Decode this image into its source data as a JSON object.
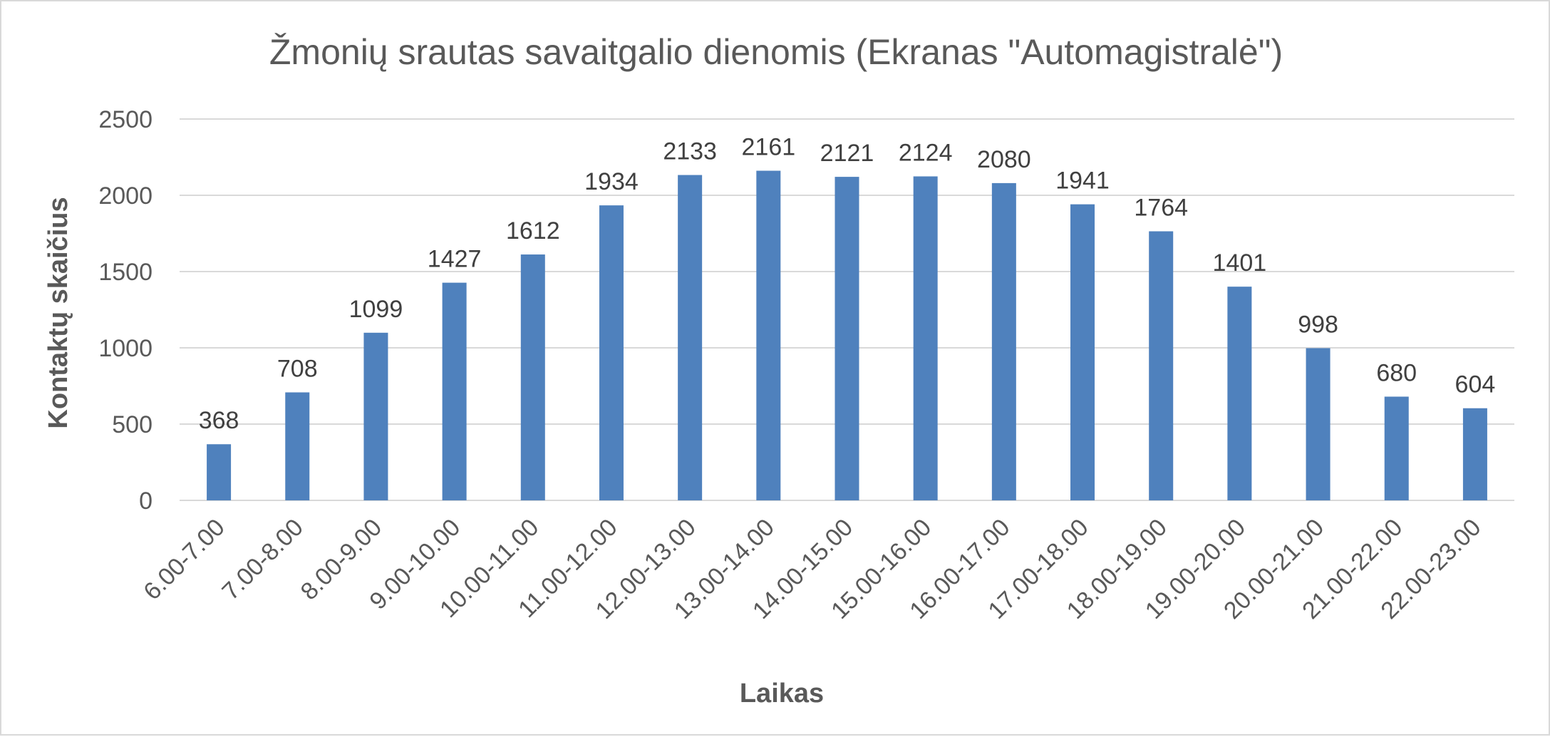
{
  "chart_data": {
    "type": "bar",
    "title": "Žmonių srautas savaitgalio dienomis (Ekranas \"Automagistralė\")",
    "xlabel": "Laikas",
    "ylabel": "Kontaktų skaičius",
    "categories": [
      "6.00-7.00",
      "7.00-8.00",
      "8.00-9.00",
      "9.00-10.00",
      "10.00-11.00",
      "11.00-12.00",
      "12.00-13.00",
      "13.00-14.00",
      "14.00-15.00",
      "15.00-16.00",
      "16.00-17.00",
      "17.00-18.00",
      "18.00-19.00",
      "19.00-20.00",
      "20.00-21.00",
      "21.00-22.00",
      "22.00-23.00"
    ],
    "values": [
      368,
      708,
      1099,
      1427,
      1612,
      1934,
      2133,
      2161,
      2121,
      2124,
      2080,
      1941,
      1764,
      1401,
      998,
      680,
      604
    ],
    "ylim": [
      0,
      2500
    ],
    "yticks": [
      0,
      500,
      1000,
      1500,
      2000,
      2500
    ],
    "grid": true,
    "legend": "none",
    "bar_color": "#4f81bd"
  }
}
